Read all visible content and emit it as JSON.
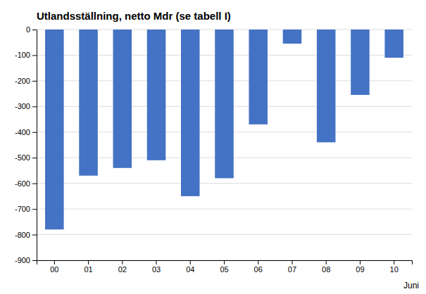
{
  "chart_data": {
    "type": "bar",
    "title": "Utlandsställning, netto Mdr (se tabell I)",
    "xlabel": "Juni",
    "categories": [
      "00",
      "01",
      "02",
      "03",
      "04",
      "05",
      "06",
      "07",
      "08",
      "09",
      "10"
    ],
    "values": [
      -780,
      -570,
      -540,
      -510,
      -650,
      -580,
      -370,
      -55,
      -440,
      -255,
      -110
    ],
    "color": "#4472C4",
    "ylim": [
      -900,
      0
    ],
    "yticks": [
      0,
      -100,
      -200,
      -300,
      -400,
      -500,
      -600,
      -700,
      -800,
      -900
    ],
    "grid": true
  }
}
